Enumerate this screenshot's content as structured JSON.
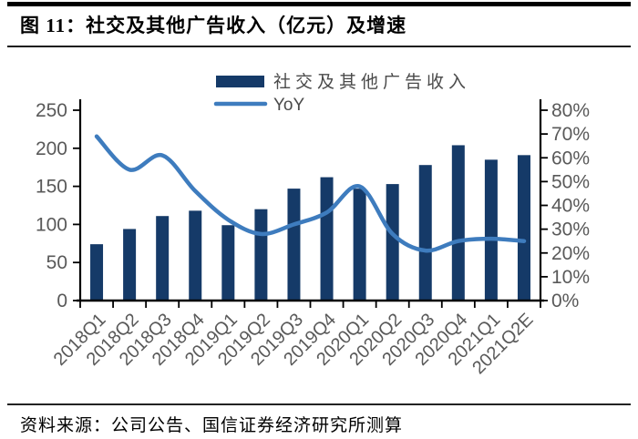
{
  "figure": {
    "title": "图 11：社交及其他广告收入（亿元）及增速",
    "source": "资料来源：公司公告、国信证券经济研究所测算"
  },
  "legend": {
    "bar_label": "社交及其他广告收入",
    "line_label": "YoY",
    "position": "top-center"
  },
  "colors": {
    "bar": "#153A68",
    "line": "#3E7CBE",
    "axis": "#000000",
    "tick_label": "#595959",
    "legend_text": "#4A4A4A"
  },
  "chart_data": {
    "type": "combo-bar-line",
    "title": "社交及其他广告收入（亿元）及增速",
    "categories": [
      "2018Q1",
      "2018Q2",
      "2018Q3",
      "2018Q4",
      "2019Q1",
      "2019Q2",
      "2019Q3",
      "2019Q4",
      "2020Q1",
      "2020Q2",
      "2020Q3",
      "2020Q4",
      "2021Q1",
      "2021Q2E"
    ],
    "series": [
      {
        "name": "社交及其他广告收入",
        "type": "bar",
        "axis": "left",
        "unit": "亿元",
        "values": [
          74,
          94,
          111,
          118,
          99,
          120,
          147,
          162,
          147,
          153,
          178,
          204,
          185,
          191
        ]
      },
      {
        "name": "YoY",
        "type": "line",
        "axis": "right",
        "unit": "%",
        "values": [
          69,
          55,
          61,
          46,
          34,
          28,
          32,
          37,
          48,
          28,
          21,
          25,
          26,
          25
        ]
      }
    ],
    "left_axis": {
      "min": 0,
      "max": 250,
      "step": 50,
      "ticks": [
        "0",
        "50",
        "100",
        "150",
        "200",
        "250"
      ]
    },
    "right_axis": {
      "min": 0,
      "max": 80,
      "step": 10,
      "ticks": [
        "0%",
        "10%",
        "20%",
        "30%",
        "40%",
        "50%",
        "60%",
        "70%",
        "80%"
      ]
    },
    "grid": false,
    "legend_position": "top-center"
  }
}
